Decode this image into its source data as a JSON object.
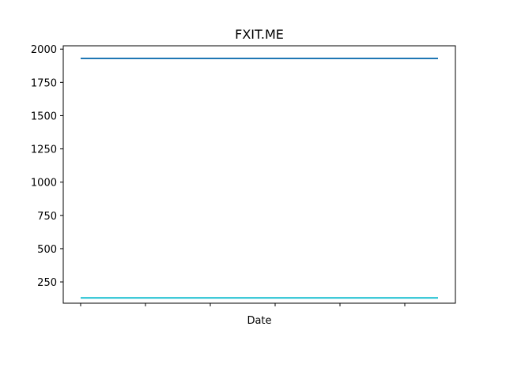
{
  "chart_data": {
    "type": "line",
    "title": "FXIT.ME",
    "xlabel": "Date",
    "ylabel": "",
    "ylim": [
      90,
      2025
    ],
    "yticks": [
      250,
      500,
      750,
      1000,
      1250,
      1500,
      1750,
      2000
    ],
    "x": [
      0,
      1
    ],
    "x_tick_count": 6,
    "series": [
      {
        "values": [
          1930,
          1930
        ],
        "color": "#1f77b4"
      },
      {
        "values": [
          130,
          130
        ],
        "color": "#17becf"
      }
    ],
    "grid": false,
    "legend": "none"
  }
}
